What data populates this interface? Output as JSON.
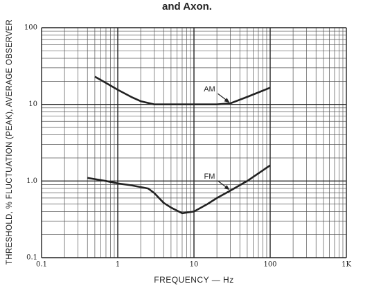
{
  "chart_data": {
    "type": "line",
    "title": "and Axon.",
    "x_label": "FREQUENCY — Hz",
    "y_label": "THRESHOLD, % FLUCTUATION (PEAK), AVERAGE OBSERVER",
    "xscale": "log",
    "yscale": "log",
    "grid": true,
    "xlim": [
      0.1,
      1000
    ],
    "ylim": [
      0.1,
      100
    ],
    "xticks": [
      0.1,
      1,
      10,
      100,
      {
        "value": 1000,
        "label": "1K"
      }
    ],
    "yticks": [
      0.1,
      {
        "value": 1,
        "label": "1.0"
      },
      10,
      100
    ],
    "series": [
      {
        "name": "AM",
        "color": "#222222",
        "x": [
          0.5,
          0.7,
          1,
          1.5,
          2,
          3,
          5,
          10,
          20,
          30,
          50,
          100
        ],
        "values": [
          23,
          19,
          15.5,
          12.5,
          11,
          10,
          10,
          10,
          10,
          10.3,
          12.5,
          16.5
        ]
      },
      {
        "name": "FM",
        "color": "#222222",
        "x": [
          0.4,
          0.7,
          1,
          1.5,
          2.5,
          3,
          4,
          5,
          7,
          10,
          15,
          20,
          30,
          50,
          100
        ],
        "values": [
          1.1,
          1.0,
          0.93,
          0.88,
          0.8,
          0.7,
          0.52,
          0.45,
          0.38,
          0.4,
          0.5,
          0.6,
          0.75,
          1.0,
          1.6
        ]
      }
    ]
  }
}
